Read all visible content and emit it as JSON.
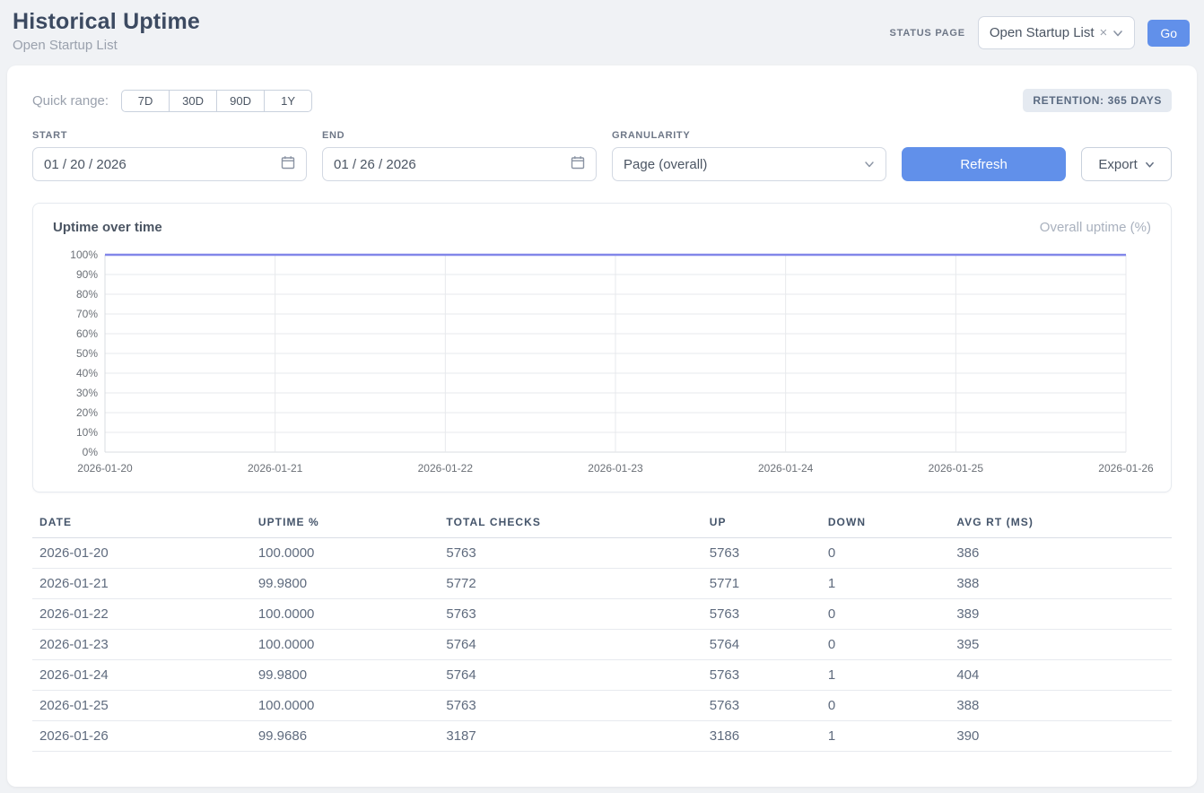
{
  "header": {
    "title": "Historical Uptime",
    "subtitle": "Open Startup List",
    "status_page_label": "STATUS PAGE",
    "status_page_value": "Open Startup List",
    "clear_icon": "×",
    "go_label": "Go"
  },
  "controls": {
    "quick_range_label": "Quick range:",
    "quick_ranges": [
      "7D",
      "30D",
      "90D",
      "1Y"
    ],
    "retention_badge": "RETENTION: 365 DAYS",
    "start": {
      "label": "START",
      "value": "01 / 20 / 2026"
    },
    "end": {
      "label": "END",
      "value": "01 / 26 / 2026"
    },
    "granularity": {
      "label": "GRANULARITY",
      "value": "Page (overall)"
    },
    "refresh_label": "Refresh",
    "export_label": "Export"
  },
  "chart": {
    "title": "Uptime over time",
    "legend": "Overall uptime (%)"
  },
  "chart_data": {
    "type": "line",
    "x": [
      "2026-01-20",
      "2026-01-21",
      "2026-01-22",
      "2026-01-23",
      "2026-01-24",
      "2026-01-25",
      "2026-01-26"
    ],
    "series": [
      {
        "name": "Overall uptime (%)",
        "values": [
          100.0,
          99.98,
          100.0,
          100.0,
          99.98,
          100.0,
          99.9686
        ]
      }
    ],
    "ylim": [
      0,
      100
    ],
    "yticks": [
      "0%",
      "10%",
      "20%",
      "30%",
      "40%",
      "50%",
      "60%",
      "70%",
      "80%",
      "90%",
      "100%"
    ],
    "line_color": "#8287e9",
    "grid": true,
    "legend_position": "top-right"
  },
  "table": {
    "columns": [
      "DATE",
      "UPTIME %",
      "TOTAL CHECKS",
      "UP",
      "DOWN",
      "AVG RT (MS)"
    ],
    "col_widths": [
      "19.2%",
      "16.5%",
      "23.1%",
      "10.4%",
      "11.3%",
      "19.5%"
    ],
    "rows": [
      [
        "2026-01-20",
        "100.0000",
        "5763",
        "5763",
        "0",
        "386"
      ],
      [
        "2026-01-21",
        "99.9800",
        "5772",
        "5771",
        "1",
        "388"
      ],
      [
        "2026-01-22",
        "100.0000",
        "5763",
        "5763",
        "0",
        "389"
      ],
      [
        "2026-01-23",
        "100.0000",
        "5764",
        "5764",
        "0",
        "395"
      ],
      [
        "2026-01-24",
        "99.9800",
        "5764",
        "5763",
        "1",
        "404"
      ],
      [
        "2026-01-25",
        "100.0000",
        "5763",
        "5763",
        "0",
        "388"
      ],
      [
        "2026-01-26",
        "99.9686",
        "3187",
        "3186",
        "1",
        "390"
      ]
    ]
  }
}
